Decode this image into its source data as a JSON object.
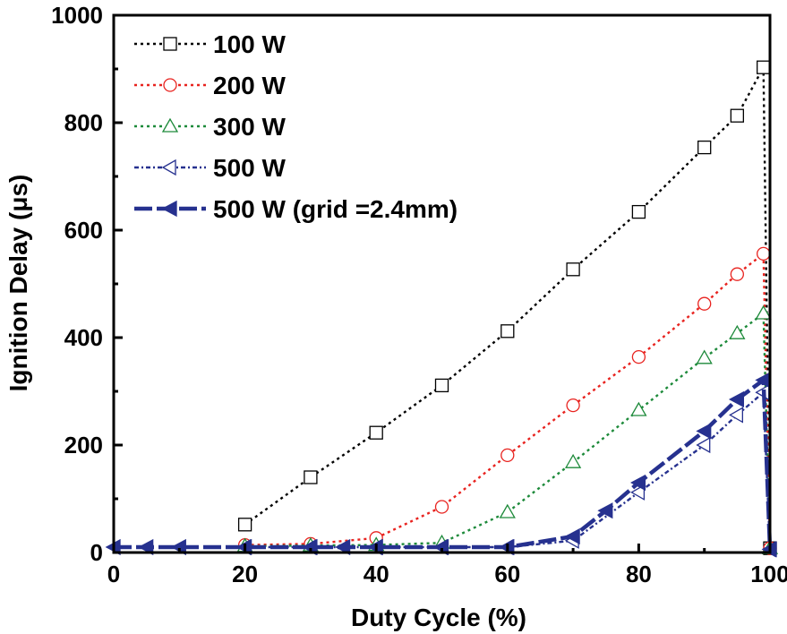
{
  "chart_data": {
    "type": "line",
    "title": "",
    "xlabel": "Duty Cycle (%)",
    "ylabel": "Ignition Delay (μs)",
    "xlim": [
      0,
      100
    ],
    "ylim": [
      0,
      1000
    ],
    "xticks": [
      0,
      20,
      40,
      60,
      80,
      100
    ],
    "yticks": [
      0,
      200,
      400,
      600,
      800,
      1000
    ],
    "xtick_labels": [
      "0",
      "20",
      "40",
      "60",
      "80",
      "100"
    ],
    "ytick_labels": [
      "0",
      "200",
      "400",
      "600",
      "800",
      "1000"
    ],
    "grid": false,
    "legend_position": "top-left",
    "series": [
      {
        "name": "100 W",
        "color": "#000000",
        "marker": "square",
        "line_style": "dotted",
        "x": [
          20,
          30,
          40,
          50,
          60,
          70,
          80,
          90,
          95,
          99,
          100
        ],
        "y": [
          52,
          140,
          223,
          311,
          412,
          527,
          634,
          754,
          813,
          903,
          8
        ]
      },
      {
        "name": "200 W",
        "color": "#e8231f",
        "marker": "circle",
        "line_style": "dotted",
        "x": [
          20,
          30,
          40,
          50,
          60,
          70,
          80,
          90,
          95,
          99,
          100
        ],
        "y": [
          14,
          16,
          27,
          85,
          181,
          274,
          364,
          463,
          518,
          556,
          8
        ]
      },
      {
        "name": "300 W",
        "color": "#1d8a3a",
        "marker": "triangle-up",
        "line_style": "dotted",
        "x": [
          20,
          30,
          40,
          50,
          60,
          70,
          80,
          90,
          95,
          99,
          100
        ],
        "y": [
          12,
          13,
          14,
          18,
          75,
          168,
          265,
          362,
          408,
          445,
          8
        ]
      },
      {
        "name": "500 W",
        "color": "#26318f",
        "marker": "triangle-left-open",
        "line_style": "dash-dot",
        "x": [
          20,
          30,
          40,
          50,
          60,
          70,
          80,
          90,
          95,
          99,
          100
        ],
        "y": [
          10,
          10,
          10,
          10,
          10,
          22,
          112,
          200,
          256,
          298,
          6
        ]
      },
      {
        "name": "500 W (grid =2.4mm)",
        "color": "#26318f",
        "marker": "triangle-left-filled",
        "line_style": "dash-long",
        "x": [
          0,
          5,
          10,
          20,
          30,
          35,
          40,
          50,
          60,
          70,
          75,
          80,
          90,
          95,
          99,
          100
        ],
        "y": [
          10,
          10,
          10,
          10,
          10,
          10,
          10,
          10,
          10,
          30,
          78,
          130,
          226,
          285,
          321,
          6
        ]
      }
    ]
  }
}
